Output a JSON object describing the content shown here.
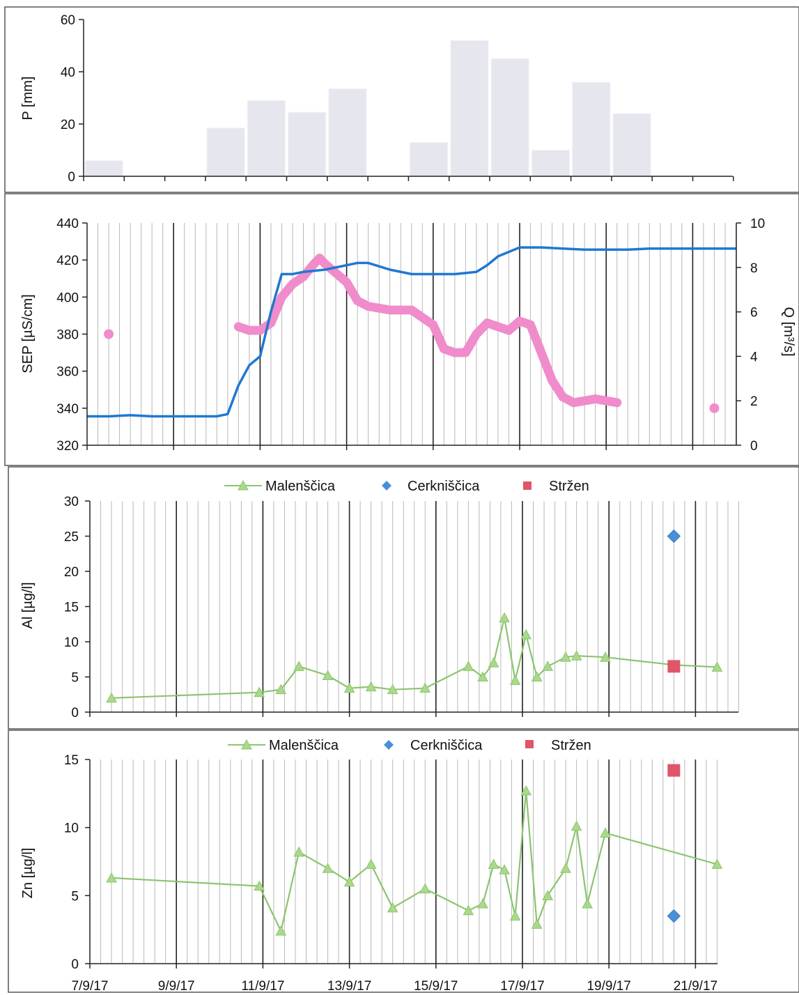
{
  "x_axis": {
    "start": "2017-09-07",
    "end": "2017-09-21",
    "tick_labels": [
      "7/9/17",
      "9/9/17",
      "11/9/17",
      "13/9/17",
      "15/9/17",
      "17/9/17",
      "19/9/17",
      "21/9/17"
    ]
  },
  "colors": {
    "precip_bar": "#e6e6ee",
    "discharge": "#1f78d1",
    "sep": "#f08ccb",
    "malenscica": "#8cc46e",
    "malenscica_marker": "#a9d98a",
    "cerkniscica": "#4a90d9",
    "strzen": "#e0556a"
  },
  "chart_data": [
    {
      "type": "bar",
      "ylabel": "P  [mm]",
      "ylim": [
        0,
        60
      ],
      "yticks": [
        0,
        20,
        40,
        60
      ],
      "x": [
        "2017-09-07",
        "2017-09-08",
        "2017-09-09",
        "2017-09-10",
        "2017-09-11",
        "2017-09-12",
        "2017-09-13",
        "2017-09-14",
        "2017-09-15",
        "2017-09-16",
        "2017-09-17",
        "2017-09-18",
        "2017-09-19",
        "2017-09-20",
        "2017-09-21"
      ],
      "values": [
        6,
        0,
        0,
        18.5,
        29,
        24.5,
        33.5,
        0,
        13,
        52,
        45,
        10,
        36,
        24,
        0
      ]
    },
    {
      "type": "line",
      "ylabel": "SEP [µS/cm]",
      "ylim": [
        320,
        440
      ],
      "yticks": [
        320,
        340,
        360,
        380,
        400,
        420,
        440
      ],
      "y2label": "Q [m³/s]",
      "y2lim": [
        0,
        10
      ],
      "y2ticks": [
        0,
        2,
        4,
        6,
        8,
        10
      ],
      "series": [
        {
          "role": "discharge",
          "axis": "right",
          "x": [
            "2017-09-07 00:00",
            "2017-09-07 12:00",
            "2017-09-08 00:00",
            "2017-09-08 12:00",
            "2017-09-09 00:00",
            "2017-09-09 12:00",
            "2017-09-10 00:00",
            "2017-09-10 06:00",
            "2017-09-10 12:00",
            "2017-09-10 18:00",
            "2017-09-11 00:00",
            "2017-09-11 06:00",
            "2017-09-11 12:00",
            "2017-09-11 18:00",
            "2017-09-12 00:00",
            "2017-09-12 12:00",
            "2017-09-13 00:00",
            "2017-09-13 06:00",
            "2017-09-13 12:00",
            "2017-09-14 00:00",
            "2017-09-14 12:00",
            "2017-09-15 00:00",
            "2017-09-15 12:00",
            "2017-09-16 00:00",
            "2017-09-16 06:00",
            "2017-09-16 12:00",
            "2017-09-17 00:00",
            "2017-09-17 12:00",
            "2017-09-18 00:00",
            "2017-09-18 12:00",
            "2017-09-19 00:00",
            "2017-09-19 12:00",
            "2017-09-20 00:00",
            "2017-09-20 12:00",
            "2017-09-21 00:00",
            "2017-09-21 12:00",
            "2017-09-22 00:00"
          ],
          "values": [
            1.3,
            1.3,
            1.35,
            1.3,
            1.3,
            1.3,
            1.3,
            1.4,
            2.7,
            3.6,
            4.0,
            6.0,
            7.7,
            7.7,
            7.8,
            7.9,
            8.1,
            8.2,
            8.2,
            7.9,
            7.7,
            7.7,
            7.7,
            7.8,
            8.1,
            8.5,
            8.9,
            8.9,
            8.85,
            8.8,
            8.8,
            8.8,
            8.85,
            8.85,
            8.85,
            8.85,
            8.85
          ]
        },
        {
          "role": "sep",
          "axis": "left",
          "x": [
            "2017-09-07 12:00",
            "2017-09-10 12:00",
            "2017-09-10 18:00",
            "2017-09-11 00:00",
            "2017-09-11 06:00",
            "2017-09-11 12:00",
            "2017-09-11 18:00",
            "2017-09-12 00:00",
            "2017-09-12 06:00",
            "2017-09-12 09:00",
            "2017-09-12 12:00",
            "2017-09-12 18:00",
            "2017-09-13 00:00",
            "2017-09-13 06:00",
            "2017-09-13 12:00",
            "2017-09-14 00:00",
            "2017-09-14 12:00",
            "2017-09-15 00:00",
            "2017-09-15 06:00",
            "2017-09-15 12:00",
            "2017-09-15 18:00",
            "2017-09-16 00:00",
            "2017-09-16 06:00",
            "2017-09-16 12:00",
            "2017-09-16 18:00",
            "2017-09-17 00:00",
            "2017-09-17 06:00",
            "2017-09-17 12:00",
            "2017-09-17 18:00",
            "2017-09-18 00:00",
            "2017-09-18 06:00",
            "2017-09-18 12:00",
            "2017-09-18 18:00",
            "2017-09-19 06:00",
            "2017-09-21 12:00"
          ],
          "values": [
            380,
            384,
            382,
            382,
            386,
            400,
            407,
            411,
            418,
            421,
            418,
            413,
            408,
            398,
            395,
            393,
            393,
            385,
            372,
            370,
            370,
            380,
            386,
            384,
            382,
            387,
            385,
            370,
            355,
            346,
            343,
            344,
            345,
            343,
            340
          ]
        }
      ]
    },
    {
      "type": "scatter",
      "ylabel": "Al  [µg/l]",
      "ylim": [
        0,
        30
      ],
      "yticks": [
        0,
        5,
        10,
        15,
        20,
        25,
        30
      ],
      "legend_position": "top",
      "series": [
        {
          "name": "Malenščica",
          "line": true,
          "x": [
            "2017-09-07 12:00",
            "2017-09-10 22:00",
            "2017-09-11 10:00",
            "2017-09-11 20:00",
            "2017-09-12 12:00",
            "2017-09-13 00:00",
            "2017-09-13 12:00",
            "2017-09-14 00:00",
            "2017-09-14 18:00",
            "2017-09-15 18:00",
            "2017-09-16 02:00",
            "2017-09-16 08:00",
            "2017-09-16 14:00",
            "2017-09-16 20:00",
            "2017-09-17 02:00",
            "2017-09-17 08:00",
            "2017-09-17 14:00",
            "2017-09-18 00:00",
            "2017-09-18 06:00",
            "2017-09-18 22:00",
            "2017-09-20 12:00",
            "2017-09-21 12:00"
          ],
          "values": [
            2,
            2.8,
            3.2,
            6.5,
            5.2,
            3.4,
            3.6,
            3.2,
            3.4,
            6.5,
            5.0,
            7.0,
            13.4,
            4.5,
            11.0,
            5.0,
            6.5,
            7.8,
            8.0,
            7.8,
            6.7,
            6.4
          ]
        },
        {
          "name": "Cerkniščica",
          "line": false,
          "x": [
            "2017-09-20 12:00"
          ],
          "values": [
            25
          ]
        },
        {
          "name": "Stržen",
          "line": false,
          "x": [
            "2017-09-20 12:00"
          ],
          "values": [
            6.5
          ]
        }
      ]
    },
    {
      "type": "scatter",
      "ylabel": "Zn [µg/l]",
      "ylim": [
        0,
        15
      ],
      "yticks": [
        0,
        5,
        10,
        15
      ],
      "legend_position": "top",
      "series": [
        {
          "name": "Malenščica",
          "line": true,
          "x": [
            "2017-09-07 12:00",
            "2017-09-10 22:00",
            "2017-09-11 10:00",
            "2017-09-11 20:00",
            "2017-09-12 12:00",
            "2017-09-13 00:00",
            "2017-09-13 12:00",
            "2017-09-14 00:00",
            "2017-09-14 18:00",
            "2017-09-15 18:00",
            "2017-09-16 02:00",
            "2017-09-16 08:00",
            "2017-09-16 14:00",
            "2017-09-16 20:00",
            "2017-09-17 02:00",
            "2017-09-17 08:00",
            "2017-09-17 14:00",
            "2017-09-18 00:00",
            "2017-09-18 06:00",
            "2017-09-18 12:00",
            "2017-09-18 22:00",
            "2017-09-21 12:00"
          ],
          "values": [
            6.3,
            5.7,
            2.4,
            8.2,
            7.0,
            6.0,
            7.3,
            4.1,
            5.5,
            3.9,
            4.4,
            7.3,
            6.9,
            3.5,
            12.7,
            2.9,
            5.0,
            7.0,
            10.1,
            4.4,
            9.6,
            7.3
          ]
        },
        {
          "name": "Cerkniščica",
          "line": false,
          "x": [
            "2017-09-20 12:00"
          ],
          "values": [
            3.5
          ]
        },
        {
          "name": "Stržen",
          "line": false,
          "x": [
            "2017-09-20 12:00"
          ],
          "values": [
            14.2
          ]
        }
      ]
    }
  ]
}
